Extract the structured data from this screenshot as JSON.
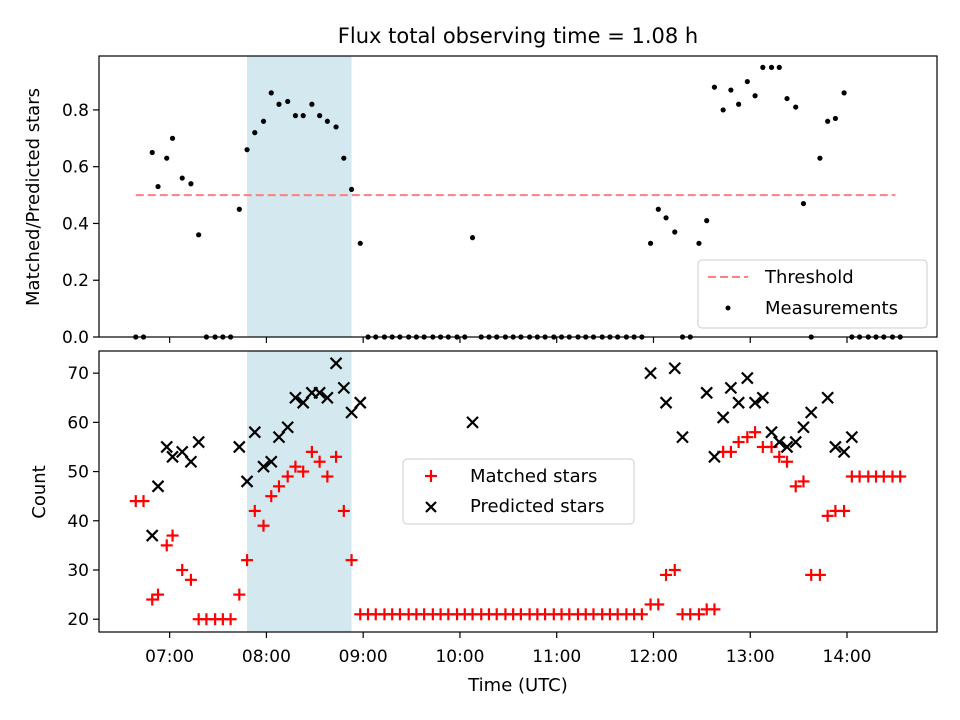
{
  "figure": {
    "title": "Flux total observing time = 1.08 h"
  },
  "chart_data": [
    {
      "type": "scatter",
      "ylabel": "Matched/Predicted stars",
      "ylim": [
        0,
        0.99
      ],
      "yticks": [
        0.0,
        0.2,
        0.4,
        0.6,
        0.8
      ],
      "ytick_labels": [
        "0.0",
        "0.2",
        "0.4",
        "0.6",
        "0.8"
      ],
      "xlim_hours": [
        6.27,
        14.93
      ],
      "shaded_region_hours": [
        7.8,
        8.88
      ],
      "shaded_color": "#d3e9ef",
      "threshold": {
        "name": "Threshold",
        "value": 0.5,
        "x_hours": [
          6.65,
          14.5
        ],
        "color": "#ff7f7f",
        "style": "dashed"
      },
      "legend_placement": "lower-right",
      "series": [
        {
          "name": "Measurements",
          "color": "#000000",
          "marker": "dot",
          "x_hours": [
            6.65,
            6.73,
            6.82,
            6.88,
            6.97,
            7.03,
            7.13,
            7.22,
            7.3,
            7.38,
            7.47,
            7.55,
            7.63,
            7.72,
            7.8,
            7.88,
            7.97,
            8.05,
            8.13,
            8.22,
            8.3,
            8.38,
            8.47,
            8.55,
            8.63,
            8.72,
            8.8,
            8.88,
            8.97,
            9.05,
            9.13,
            9.22,
            9.3,
            9.38,
            9.47,
            9.55,
            9.63,
            9.72,
            9.8,
            9.88,
            9.97,
            10.05,
            10.13,
            10.22,
            10.3,
            10.38,
            10.47,
            10.55,
            10.63,
            10.72,
            10.8,
            10.88,
            10.97,
            11.05,
            11.13,
            11.22,
            11.3,
            11.38,
            11.47,
            11.55,
            11.63,
            11.72,
            11.8,
            11.88,
            11.97,
            12.05,
            12.13,
            12.22,
            12.3,
            12.38,
            12.47,
            12.55,
            12.63,
            12.72,
            12.8,
            12.88,
            12.97,
            13.05,
            13.13,
            13.22,
            13.3,
            13.38,
            13.47,
            13.55,
            13.63,
            13.72,
            13.8,
            13.88,
            13.97,
            14.05,
            14.13,
            14.22,
            14.3,
            14.38,
            14.47,
            14.55
          ],
          "values": [
            0,
            0,
            0.65,
            0.53,
            0.63,
            0.7,
            0.56,
            0.54,
            0.36,
            0,
            0,
            0,
            0,
            0.45,
            0.66,
            0.72,
            0.76,
            0.86,
            0.82,
            0.83,
            0.78,
            0.78,
            0.82,
            0.78,
            0.76,
            0.74,
            0.63,
            0.52,
            0.33,
            0,
            0,
            0,
            0,
            0,
            0,
            0,
            0,
            0,
            0,
            0,
            0,
            0,
            0.35,
            0,
            0,
            0,
            0,
            0,
            0,
            0,
            0,
            0,
            0,
            0,
            0,
            0,
            0,
            0,
            0,
            0,
            0,
            0,
            0,
            0,
            0.33,
            0.45,
            0.42,
            0.37,
            0,
            0,
            0.33,
            0.41,
            0.88,
            0.8,
            0.87,
            0.82,
            0.9,
            0.85,
            0.95,
            0.95,
            0.95,
            0.84,
            0.81,
            0.47,
            0,
            0.63,
            0.76,
            0.77,
            0.86,
            0,
            0,
            0,
            0,
            0,
            0,
            0
          ]
        }
      ]
    },
    {
      "type": "scatter",
      "title": "",
      "xlabel": "Time (UTC)",
      "ylabel": "Count",
      "ylim": [
        17.4,
        74.5
      ],
      "yticks": [
        20,
        30,
        40,
        50,
        60,
        70
      ],
      "ytick_labels": [
        "20",
        "30",
        "40",
        "50",
        "60",
        "70"
      ],
      "xlim_hours": [
        6.27,
        14.93
      ],
      "xticks_hours": [
        7,
        8,
        9,
        10,
        11,
        12,
        13,
        14
      ],
      "xtick_labels": [
        "07:00",
        "08:00",
        "09:00",
        "10:00",
        "11:00",
        "12:00",
        "13:00",
        "14:00"
      ],
      "shaded_region_hours": [
        7.8,
        8.88
      ],
      "legend_placement": "center",
      "series": [
        {
          "name": "Matched stars",
          "color": "#ff0000",
          "marker": "plus",
          "x_hours": [
            6.65,
            6.73,
            6.82,
            6.88,
            6.97,
            7.03,
            7.13,
            7.22,
            7.3,
            7.38,
            7.47,
            7.55,
            7.63,
            7.72,
            7.8,
            7.88,
            7.97,
            8.05,
            8.13,
            8.22,
            8.3,
            8.38,
            8.47,
            8.55,
            8.63,
            8.72,
            8.8,
            8.88,
            8.97,
            9.05,
            9.13,
            9.22,
            9.3,
            9.38,
            9.47,
            9.55,
            9.63,
            9.72,
            9.8,
            9.88,
            9.97,
            10.05,
            10.13,
            10.22,
            10.3,
            10.38,
            10.47,
            10.55,
            10.63,
            10.72,
            10.8,
            10.88,
            10.97,
            11.05,
            11.13,
            11.22,
            11.3,
            11.38,
            11.47,
            11.55,
            11.63,
            11.72,
            11.8,
            11.88,
            11.97,
            12.05,
            12.13,
            12.22,
            12.3,
            12.38,
            12.47,
            12.55,
            12.63,
            12.72,
            12.8,
            12.88,
            12.97,
            13.05,
            13.13,
            13.22,
            13.3,
            13.38,
            13.47,
            13.55,
            13.63,
            13.72,
            13.8,
            13.88,
            13.97,
            14.05,
            14.13,
            14.22,
            14.3,
            14.38,
            14.47,
            14.55
          ],
          "values": [
            44,
            44,
            24,
            25,
            35,
            37,
            30,
            28,
            20,
            20,
            20,
            20,
            20,
            25,
            32,
            42,
            39,
            45,
            47,
            49,
            51,
            50,
            54,
            52,
            49,
            53,
            42,
            32,
            21,
            21,
            21,
            21,
            21,
            21,
            21,
            21,
            21,
            21,
            21,
            21,
            21,
            21,
            21,
            21,
            21,
            21,
            21,
            21,
            21,
            21,
            21,
            21,
            21,
            21,
            21,
            21,
            21,
            21,
            21,
            21,
            21,
            21,
            21,
            21,
            23,
            23,
            29,
            30,
            21,
            21,
            21,
            22,
            22,
            54,
            54,
            56,
            57,
            58,
            55,
            55,
            53,
            52,
            47,
            48,
            29,
            29,
            41,
            42,
            42,
            49,
            49,
            49,
            49,
            49,
            49,
            49
          ]
        },
        {
          "name": "Predicted stars",
          "color": "#000000",
          "marker": "x",
          "x_hours": [
            6.82,
            6.88,
            6.97,
            7.03,
            7.13,
            7.22,
            7.3,
            7.72,
            7.8,
            7.88,
            7.97,
            8.05,
            8.13,
            8.22,
            8.3,
            8.38,
            8.47,
            8.55,
            8.63,
            8.72,
            8.8,
            8.88,
            8.97,
            10.13,
            11.97,
            12.13,
            12.22,
            12.3,
            12.55,
            12.63,
            12.72,
            12.8,
            12.88,
            12.97,
            13.05,
            13.13,
            13.22,
            13.3,
            13.38,
            13.47,
            13.55,
            13.63,
            13.8,
            13.88,
            13.97,
            14.05
          ],
          "values": [
            37,
            47,
            55,
            53,
            54,
            52,
            56,
            55,
            48,
            58,
            51,
            52,
            57,
            59,
            65,
            64,
            66,
            66,
            65,
            72,
            67,
            62,
            64,
            60,
            70,
            64,
            71,
            57,
            66,
            53,
            61,
            67,
            64,
            69,
            64,
            65,
            58,
            56,
            55,
            56,
            59,
            62,
            65,
            55,
            54,
            57
          ]
        }
      ]
    }
  ]
}
